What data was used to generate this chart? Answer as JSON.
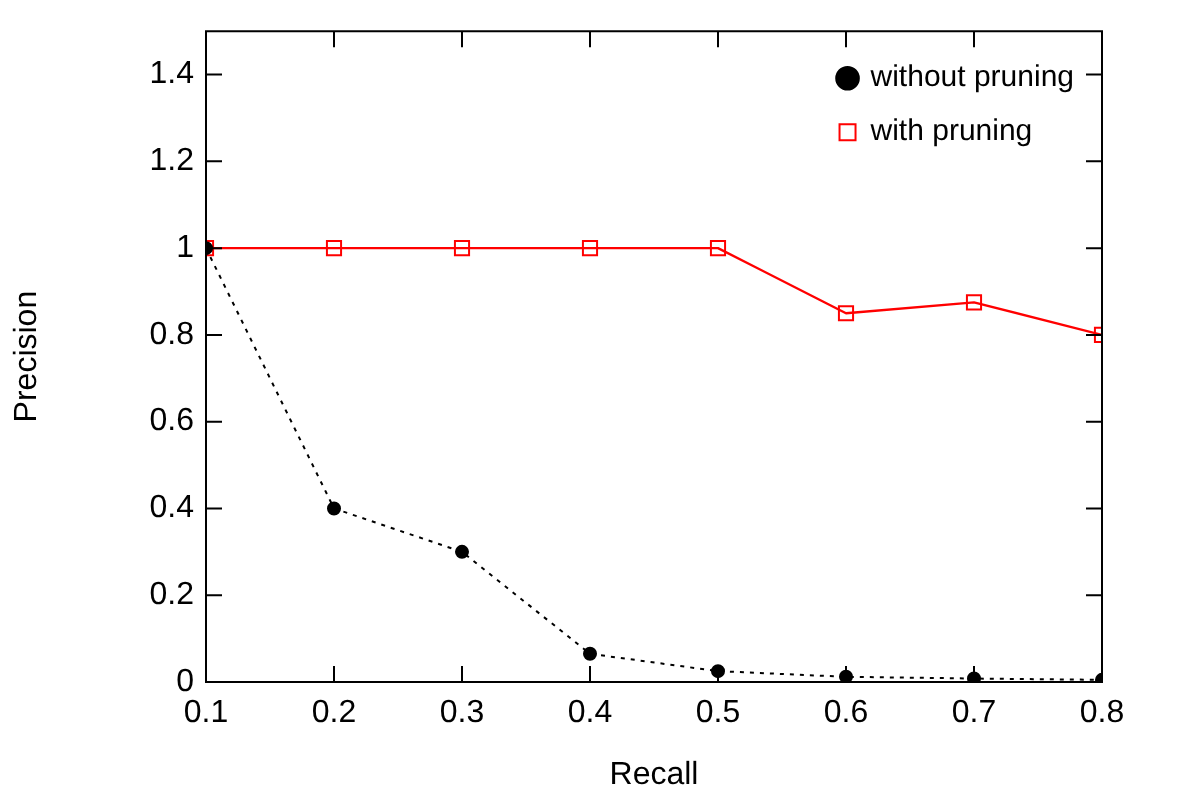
{
  "chart_data": {
    "type": "line",
    "xlabel": "Recall",
    "ylabel": "Precision",
    "x": [
      0.1,
      0.2,
      0.3,
      0.4,
      0.5,
      0.6,
      0.7,
      0.8
    ],
    "series": [
      {
        "name": "without pruning",
        "color": "#000000",
        "marker": "circle",
        "line_style": "dotted",
        "values": [
          1,
          0.4,
          0.3,
          0.065,
          0.025,
          0.012,
          0.008,
          0.005
        ]
      },
      {
        "name": "with pruning",
        "color": "#ff0000",
        "marker": "square",
        "line_style": "solid",
        "values": [
          1,
          1,
          1,
          1,
          1,
          0.85,
          0.875,
          0.8
        ]
      }
    ],
    "xlim": [
      0.1,
      0.8
    ],
    "xticks": [
      0.1,
      0.2,
      0.3,
      0.4,
      0.5,
      0.6,
      0.7,
      0.8
    ],
    "ylim": [
      0,
      1.5
    ],
    "yticks": [
      0,
      0.2,
      0.4,
      0.6,
      0.8,
      1,
      1.2,
      1.4
    ],
    "grid": false,
    "legend": "top right"
  }
}
